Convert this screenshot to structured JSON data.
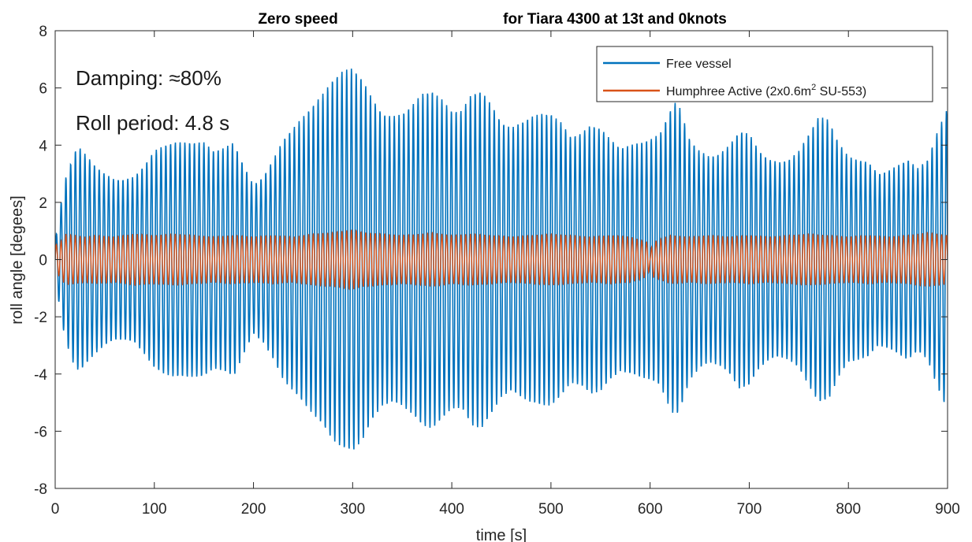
{
  "chart_data": {
    "type": "line",
    "title_left": "Zero speed",
    "title_right": "for Tiara 4300 at 13t and 0knots",
    "xlabel": "time [s]",
    "ylabel": "roll angle [degees]",
    "xlim": [
      0,
      900
    ],
    "ylim": [
      -8,
      8
    ],
    "x_ticks": [
      0,
      100,
      200,
      300,
      400,
      500,
      600,
      700,
      800,
      900
    ],
    "y_ticks": [
      -8,
      -6,
      -4,
      -2,
      0,
      2,
      4,
      6,
      8
    ],
    "grid": false,
    "legend_position": "top-right",
    "annotations": [
      "Damping: ≈80%",
      "Roll period: 4.8 s"
    ],
    "roll_period_s": 4.8,
    "series": [
      {
        "name": "Free vessel",
        "color": "#0072BD",
        "envelope": {
          "t": [
            0,
            5,
            10,
            20,
            25,
            30,
            40,
            50,
            60,
            70,
            80,
            90,
            100,
            110,
            120,
            150,
            160,
            170,
            180,
            190,
            200,
            210,
            220,
            230,
            250,
            270,
            280,
            290,
            300,
            310,
            320,
            330,
            340,
            350,
            360,
            370,
            380,
            390,
            400,
            410,
            420,
            430,
            440,
            450,
            460,
            470,
            480,
            490,
            500,
            510,
            520,
            530,
            540,
            550,
            560,
            570,
            580,
            590,
            600,
            610,
            620,
            625,
            630,
            640,
            650,
            660,
            670,
            680,
            690,
            700,
            710,
            720,
            730,
            740,
            750,
            760,
            770,
            780,
            790,
            800,
            810,
            820,
            830,
            840,
            850,
            860,
            870,
            880,
            890,
            900
          ],
          "amplitude": [
            0.6,
            1.8,
            2.8,
            3.8,
            3.9,
            3.7,
            3.3,
            3.0,
            2.8,
            2.8,
            2.9,
            3.3,
            3.8,
            4.0,
            4.1,
            4.1,
            3.8,
            3.9,
            4.1,
            3.3,
            2.6,
            2.9,
            3.5,
            4.2,
            5.0,
            5.8,
            6.3,
            6.6,
            6.7,
            6.3,
            5.6,
            5.1,
            5.0,
            5.1,
            5.4,
            5.8,
            5.9,
            5.6,
            5.2,
            5.2,
            5.8,
            5.9,
            5.4,
            4.8,
            4.6,
            4.8,
            5.0,
            5.1,
            5.1,
            4.8,
            4.3,
            4.4,
            4.7,
            4.6,
            4.2,
            3.9,
            4.0,
            4.1,
            4.2,
            4.4,
            5.2,
            5.5,
            5.3,
            4.2,
            3.8,
            3.6,
            3.7,
            4.0,
            4.5,
            4.4,
            3.8,
            3.5,
            3.4,
            3.5,
            3.8,
            4.4,
            5.0,
            4.9,
            4.1,
            3.6,
            3.5,
            3.4,
            3.0,
            3.1,
            3.3,
            3.5,
            3.2,
            3.5,
            4.5,
            5.3
          ]
        }
      },
      {
        "name": "Humphree Active (2x0.6m² SU-553)",
        "legend_base": "Humphree Active (2x0.6m",
        "legend_sup": "2",
        "legend_tail": " SU-553)",
        "color": "#D95319",
        "envelope": {
          "t": [
            0,
            5,
            10,
            20,
            30,
            40,
            60,
            80,
            100,
            120,
            140,
            160,
            180,
            200,
            220,
            240,
            260,
            280,
            290,
            300,
            310,
            330,
            350,
            370,
            380,
            400,
            420,
            440,
            460,
            480,
            500,
            520,
            540,
            560,
            580,
            598,
            600,
            602,
            620,
            640,
            660,
            680,
            700,
            720,
            740,
            760,
            780,
            800,
            820,
            840,
            860,
            880,
            890,
            900
          ],
          "amplitude": [
            0.5,
            0.6,
            0.9,
            0.85,
            0.8,
            0.85,
            0.8,
            0.9,
            0.85,
            0.9,
            0.85,
            0.8,
            0.85,
            0.8,
            0.85,
            0.8,
            0.9,
            0.95,
            1.0,
            1.05,
            0.95,
            0.9,
            0.85,
            0.9,
            0.95,
            0.85,
            0.9,
            0.85,
            0.8,
            0.85,
            0.9,
            0.85,
            0.8,
            0.85,
            0.8,
            0.6,
            0.1,
            0.6,
            0.85,
            0.8,
            0.85,
            0.8,
            0.85,
            0.8,
            0.85,
            0.9,
            0.85,
            0.8,
            0.85,
            0.8,
            0.85,
            0.95,
            0.9,
            0.85
          ]
        }
      }
    ]
  }
}
